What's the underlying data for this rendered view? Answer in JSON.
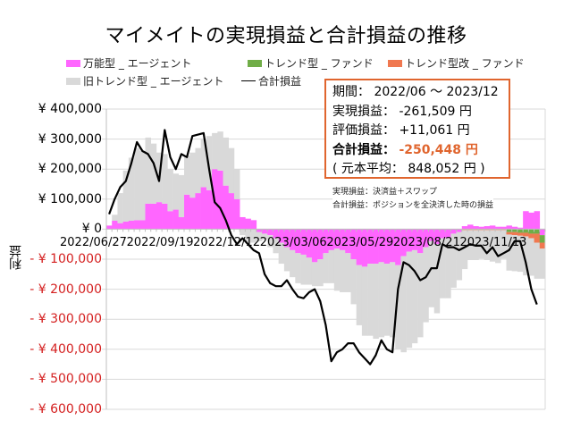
{
  "chart_data": {
    "type": "bar",
    "title": "マイメイトの実現損益と合計損益の推移",
    "ylabel": "利益",
    "xlabel": "",
    "ylim": [
      -600000,
      400000
    ],
    "yticks": [
      "¥ 400,000",
      "¥ 300,000",
      "¥ 200,000",
      "¥ 100,000",
      "¥ 0",
      "- ¥ 100,000",
      "- ¥ 200,000",
      "- ¥ 300,000",
      "- ¥ 400,000",
      "- ¥ 500,000",
      "- ¥ 600,000"
    ],
    "ytick_values": [
      400000,
      300000,
      200000,
      100000,
      0,
      -100000,
      -200000,
      -300000,
      -400000,
      -500000,
      -600000
    ],
    "x_tick_labels": [
      {
        "label": "2022/06/27",
        "index": 0
      },
      {
        "label": "2022/09/19",
        "index": 12
      },
      {
        "label": "2022/12/12",
        "index": 24
      },
      {
        "label": "2023/03/06",
        "index": 36
      },
      {
        "label": "2023/05/29",
        "index": 48
      },
      {
        "label": "2023/08/21",
        "index": 60
      },
      {
        "label": "2023/11/13",
        "index": 72
      }
    ],
    "grid": true,
    "stacked": true,
    "legend": [
      "万能型 _ エージェント",
      "トレンド型 _ ファンド",
      "トレンド型改 _ ファンド",
      "旧トレンド型 _ エージェント",
      "合計損益"
    ],
    "legend_position": "top",
    "series": [
      {
        "name": "万能型 _ エージェント",
        "type": "bar",
        "color": "#ff66ff",
        "values": [
          12000,
          28000,
          20000,
          25000,
          28000,
          30000,
          30000,
          85000,
          85000,
          90000,
          85000,
          60000,
          65000,
          40000,
          115000,
          105000,
          120000,
          140000,
          130000,
          200000,
          195000,
          145000,
          120000,
          100000,
          40000,
          35000,
          30000,
          -10000,
          -15000,
          -20000,
          -30000,
          -45000,
          -60000,
          -70000,
          -80000,
          -85000,
          -95000,
          -110000,
          -100000,
          -80000,
          -70000,
          -65000,
          -70000,
          -80000,
          -100000,
          -120000,
          -125000,
          -115000,
          -115000,
          -110000,
          -115000,
          -110000,
          -120000,
          -90000,
          -75000,
          -70000,
          -80000,
          -60000,
          -40000,
          -50000,
          -30000,
          -30000,
          -15000,
          -10000,
          10000,
          15000,
          10000,
          8000,
          10000,
          12000,
          8000,
          8000,
          12000,
          8000,
          5000,
          60000,
          55000,
          60000,
          -20000
        ]
      },
      {
        "name": "トレンド型 _ ファンド",
        "type": "bar",
        "color": "#70ad47",
        "values": [
          0,
          0,
          0,
          0,
          0,
          0,
          0,
          0,
          0,
          0,
          0,
          0,
          0,
          0,
          0,
          0,
          0,
          0,
          0,
          0,
          0,
          0,
          0,
          0,
          0,
          0,
          0,
          0,
          0,
          0,
          0,
          0,
          0,
          0,
          0,
          0,
          0,
          0,
          0,
          0,
          0,
          0,
          0,
          0,
          0,
          0,
          0,
          0,
          0,
          0,
          0,
          0,
          0,
          0,
          0,
          0,
          0,
          0,
          0,
          0,
          0,
          0,
          0,
          0,
          0,
          0,
          0,
          0,
          0,
          0,
          0,
          0,
          -10000,
          -10000,
          -12000,
          -12000,
          -15000,
          -15000,
          -25000
        ]
      },
      {
        "name": "トレンド型改 _ ファンド",
        "type": "bar",
        "color": "#f07850",
        "values": [
          0,
          0,
          0,
          0,
          0,
          0,
          0,
          0,
          0,
          0,
          0,
          0,
          0,
          0,
          0,
          0,
          0,
          0,
          0,
          0,
          0,
          0,
          0,
          0,
          0,
          0,
          0,
          0,
          0,
          0,
          0,
          0,
          0,
          0,
          0,
          0,
          0,
          0,
          0,
          0,
          0,
          0,
          0,
          0,
          0,
          0,
          0,
          0,
          0,
          0,
          0,
          0,
          0,
          0,
          0,
          0,
          0,
          0,
          0,
          0,
          0,
          0,
          0,
          0,
          -3000,
          -3000,
          -3000,
          -3000,
          -3000,
          -3000,
          -3000,
          -3000,
          -8000,
          -10000,
          -10000,
          -12000,
          -15000,
          -30000,
          -20000
        ]
      },
      {
        "name": "旧トレンド型 _ エージェント",
        "type": "bar",
        "color": "#d9d9d9",
        "values": [
          0,
          20000,
          100000,
          170000,
          210000,
          240000,
          230000,
          220000,
          200000,
          165000,
          165000,
          140000,
          120000,
          140000,
          130000,
          150000,
          150000,
          160000,
          180000,
          120000,
          130000,
          160000,
          150000,
          100000,
          -20000,
          -45000,
          -45000,
          -30000,
          -20000,
          -40000,
          -50000,
          -70000,
          -80000,
          -90000,
          -100000,
          -100000,
          -90000,
          -80000,
          -90000,
          -100000,
          -110000,
          -140000,
          -140000,
          -130000,
          -150000,
          -200000,
          -230000,
          -240000,
          -250000,
          -250000,
          -240000,
          -250000,
          -280000,
          -320000,
          -320000,
          -310000,
          -280000,
          -250000,
          -220000,
          -230000,
          -200000,
          -200000,
          -180000,
          -160000,
          -130000,
          -100000,
          -100000,
          -95000,
          -100000,
          -105000,
          -110000,
          -95000,
          -120000,
          -120000,
          -120000,
          -130000,
          -125000,
          -120000,
          -100000
        ]
      },
      {
        "name": "合計損益",
        "type": "line",
        "color": "#000000",
        "values": [
          50000,
          100000,
          140000,
          160000,
          220000,
          290000,
          260000,
          250000,
          220000,
          160000,
          330000,
          240000,
          200000,
          250000,
          240000,
          310000,
          315000,
          320000,
          200000,
          90000,
          70000,
          30000,
          -20000,
          -50000,
          -30000,
          -50000,
          -70000,
          -80000,
          -150000,
          -180000,
          -190000,
          -190000,
          -170000,
          -200000,
          -225000,
          -230000,
          -210000,
          -200000,
          -240000,
          -320000,
          -440000,
          -410000,
          -400000,
          -380000,
          -380000,
          -410000,
          -430000,
          -450000,
          -420000,
          -370000,
          -400000,
          -410000,
          -200000,
          -110000,
          -120000,
          -140000,
          -170000,
          -160000,
          -130000,
          -130000,
          -50000,
          -60000,
          -60000,
          -70000,
          -60000,
          -50000,
          -55000,
          -55000,
          -80000,
          -60000,
          -90000,
          -80000,
          -70000,
          -40000,
          -40000,
          -110000,
          -200000,
          -250448
        ]
      }
    ],
    "summary": {
      "period": "2022/06 ～ 2023/12",
      "realized": -261509,
      "unrealized": 11061,
      "total": -250448,
      "principal_avg": 848052
    }
  },
  "title": "マイメイトの実現損益と合計損益の推移",
  "legend": {
    "items": [
      {
        "label": "万能型 _ エージェント",
        "color": "#ff66ff"
      },
      {
        "label": "トレンド型 _ ファンド",
        "color": "#70ad47"
      },
      {
        "label": "トレンド型改 _ ファンド",
        "color": "#f07850"
      },
      {
        "label": "旧トレンド型 _ エージェント",
        "color": "#d9d9d9"
      },
      {
        "label": "合計損益",
        "color": "#000000"
      }
    ]
  },
  "axis": {
    "ylabel": "利益",
    "yticks": [
      "¥ 400,000",
      "¥ 300,000",
      "¥ 200,000",
      "¥ 100,000",
      "¥ 0",
      "- ¥ 100,000",
      "- ¥ 200,000",
      "- ¥ 300,000",
      "- ¥ 400,000",
      "- ¥ 500,000",
      "- ¥ 600,000"
    ],
    "xticks": [
      "2022/06/27",
      "2022/09/19",
      "2022/12/12",
      "2023/03/06",
      "2023/05/29",
      "2023/08/21",
      "2023/11/13"
    ]
  },
  "infobox": {
    "period_label": "期間：",
    "period_value": "2022/06 ～ 2023/12",
    "realized_label": "実現損益：",
    "realized_value": "-261,509 円",
    "unrealized_label": "評価損益：",
    "unrealized_value": "+11,061 円",
    "total_label": "合計損益：",
    "total_value": "-250,448 円",
    "principal_text": "( 元本平均： 848,052 円 )",
    "accent_color": "#e0652e"
  },
  "notes": {
    "realized_note": "実現損益：決済益＋スワップ",
    "total_note": "合計損益：ポジションを全決済した時の損益"
  }
}
